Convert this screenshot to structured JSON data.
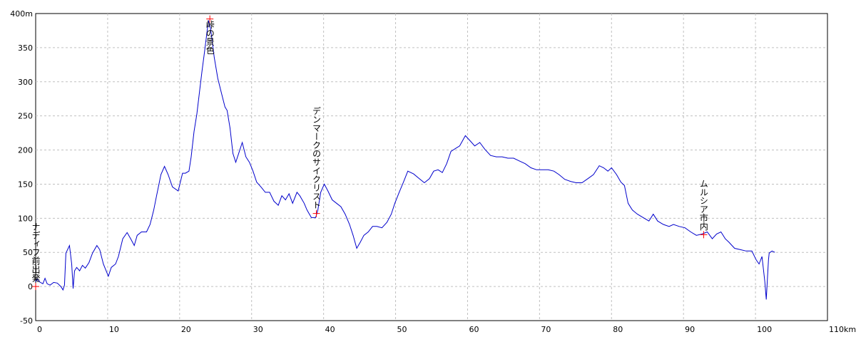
{
  "chart_data": {
    "type": "line",
    "series": [
      {
        "color": "#0000cc",
        "x": [
          0,
          0.2,
          0.5,
          1.0,
          1.3,
          1.6,
          2.0,
          2.5,
          3.0,
          3.5,
          3.8,
          4.0,
          4.2,
          4.7,
          5.0,
          5.2,
          5.4,
          5.7,
          6.1,
          6.5,
          6.9,
          7.4,
          7.9,
          8.5,
          8.9,
          9.4,
          10.1,
          10.5,
          11.1,
          11.5,
          12.1,
          12.7,
          13.2,
          13.7,
          14.1,
          14.7,
          15.4,
          15.9,
          16.4,
          16.8,
          17.4,
          17.9,
          18.4,
          19.0,
          19.8,
          20.4,
          20.8,
          21.3,
          21.6,
          22.0,
          22.4,
          22.8,
          23.1,
          23.5,
          24.0,
          24.3,
          24.8,
          25.3,
          25.8,
          26.3,
          26.6,
          27.0,
          27.4,
          27.8,
          28.2,
          28.7,
          29.2,
          29.7,
          30.2,
          30.7,
          31.3,
          31.9,
          32.5,
          33.1,
          33.7,
          34.2,
          34.7,
          35.2,
          35.7,
          36.3,
          36.7,
          37.3,
          37.7,
          38.3,
          38.9,
          39.2,
          39.6,
          40.1,
          40.6,
          41.2,
          41.8,
          42.4,
          43.0,
          43.6,
          44.1,
          44.6,
          45.1,
          45.6,
          46.2,
          46.8,
          47.4,
          48.1,
          48.8,
          49.4,
          49.9,
          50.5,
          51.1,
          51.7,
          52.5,
          53.3,
          54.0,
          54.7,
          55.3,
          55.9,
          56.5,
          57.1,
          57.7,
          58.3,
          58.9,
          59.7,
          60.4,
          61.0,
          61.7,
          62.4,
          63.2,
          64.0,
          64.8,
          65.6,
          66.4,
          67.2,
          68.0,
          68.8,
          69.6,
          70.4,
          71.2,
          72.0,
          72.7,
          73.5,
          74.3,
          75.1,
          75.9,
          76.7,
          77.5,
          78.3,
          78.9,
          79.5,
          80.0,
          80.7,
          81.3,
          81.8,
          82.3,
          82.9,
          83.6,
          84.4,
          85.2,
          85.8,
          86.4,
          87.2,
          88.0,
          88.6,
          89.4,
          90.2,
          91.0,
          91.8,
          92.6,
          93.3,
          94.0,
          94.6,
          95.2,
          95.8,
          96.3,
          97.1,
          97.9,
          98.7,
          99.5,
          100.1,
          100.5,
          100.9,
          101.3,
          101.5,
          101.8,
          101.9,
          102.3,
          102.7
        ],
        "values": [
          7,
          12,
          7,
          4,
          12,
          4,
          2,
          6,
          5,
          0,
          -5,
          2,
          49,
          60,
          33,
          -3,
          23,
          28,
          23,
          31,
          27,
          35,
          49,
          60,
          54,
          33,
          15,
          28,
          33,
          44,
          70,
          79,
          70,
          60,
          75,
          80,
          80,
          91,
          112,
          133,
          164,
          176,
          164,
          146,
          140,
          166,
          166,
          169,
          190,
          227,
          253,
          289,
          315,
          347,
          390,
          378,
          336,
          305,
          284,
          263,
          258,
          232,
          195,
          182,
          195,
          211,
          190,
          182,
          169,
          153,
          146,
          138,
          138,
          125,
          119,
          133,
          127,
          136,
          122,
          138,
          133,
          122,
          112,
          101,
          101,
          112,
          138,
          150,
          140,
          127,
          122,
          117,
          106,
          91,
          75,
          56,
          65,
          75,
          80,
          88,
          88,
          86,
          94,
          106,
          122,
          138,
          153,
          169,
          165,
          158,
          152,
          158,
          169,
          171,
          167,
          180,
          198,
          202,
          206,
          221,
          213,
          206,
          211,
          201,
          192,
          190,
          190,
          188,
          188,
          184,
          180,
          174,
          171,
          171,
          171,
          169,
          164,
          157,
          154,
          152,
          152,
          158,
          164,
          177,
          174,
          169,
          174,
          164,
          153,
          148,
          122,
          112,
          106,
          101,
          96,
          106,
          96,
          91,
          88,
          91,
          88,
          86,
          80,
          75,
          77,
          80,
          70,
          77,
          80,
          70,
          65,
          56,
          54,
          52,
          52,
          39,
          33,
          44,
          7,
          -19,
          39,
          49,
          52,
          50
        ]
      }
    ],
    "annotations": [
      {
        "text": "ナディフ前出発",
        "x": 0,
        "y": 0,
        "color": "#008000",
        "marker_color": "#ff0000"
      },
      {
        "text": "峠の景色",
        "x": 24.2,
        "y": 392,
        "color": "#008000",
        "marker_color": "#ff0000"
      },
      {
        "text": "デンマークのサイクリスト",
        "x": 39.0,
        "y": 107,
        "color": "#008000",
        "marker_color": "#ff0000"
      },
      {
        "text": "ムルシア市内",
        "x": 92.8,
        "y": 76,
        "color": "#008000",
        "marker_color": "#ff0000"
      }
    ],
    "xlim": [
      0,
      110
    ],
    "xticks": [
      0,
      10,
      20,
      30,
      40,
      50,
      60,
      70,
      80,
      90,
      100,
      {
        "value": 110,
        "label": "110km"
      }
    ],
    "ylim": [
      -50,
      400
    ],
    "yticks": [
      -50,
      0,
      50,
      100,
      150,
      200,
      250,
      300,
      350,
      {
        "value": 400,
        "label": "400m"
      }
    ],
    "grid": true
  }
}
